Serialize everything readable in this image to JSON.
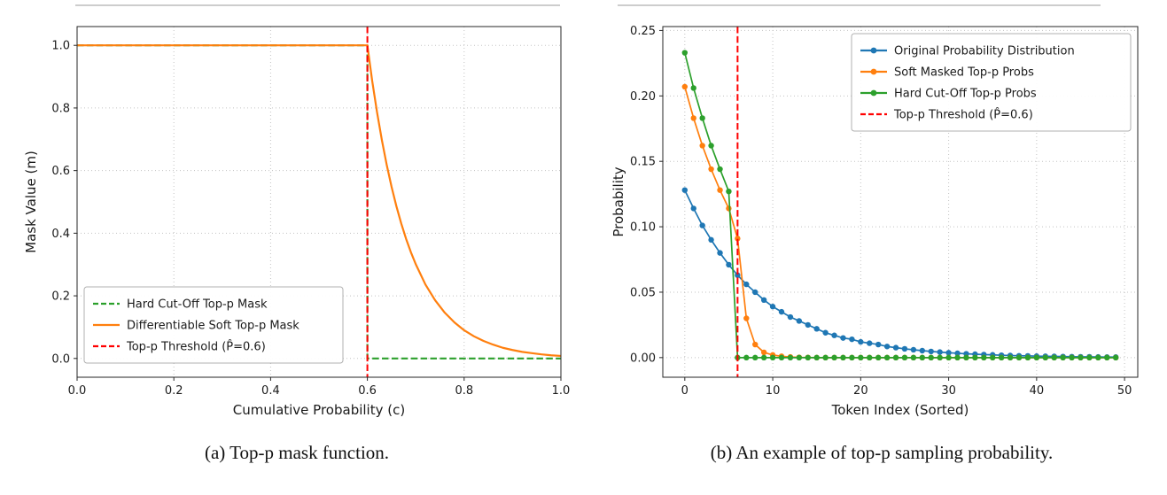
{
  "captions": {
    "a": "(a) Top-p mask function.",
    "b": "(b) An example of top-p sampling probability."
  },
  "chart_data": [
    {
      "id": "chart-a",
      "type": "line",
      "title": "",
      "xlabel": "Cumulative Probability (c)",
      "ylabel": "Mask Value (m)",
      "xlim": [
        0,
        1
      ],
      "ylim": [
        -0.06,
        1.06
      ],
      "xticks": [
        0,
        0.2,
        0.4,
        0.6,
        0.8,
        1.0
      ],
      "xtick_labels": [
        "0.0",
        "0.2",
        "0.4",
        "0.6",
        "0.8",
        "1.0"
      ],
      "yticks": [
        0,
        0.2,
        0.4,
        0.6,
        0.8,
        1.0
      ],
      "ytick_labels": [
        "0.0",
        "0.2",
        "0.4",
        "0.6",
        "0.8",
        "1.0"
      ],
      "grid": true,
      "legend_position": "lower left",
      "series": [
        {
          "name": "Hard Cut-Off Top-p Mask",
          "color": "#2ca02c",
          "style": "dashed",
          "marker": false,
          "points": [
            [
              0,
              1
            ],
            [
              0.6,
              1
            ],
            [
              0.6,
              0
            ],
            [
              1,
              0
            ]
          ]
        },
        {
          "name": "Differentiable Soft Top-p Mask",
          "color": "#ff7f0e",
          "style": "solid",
          "marker": false,
          "points": [
            [
              0,
              1
            ],
            [
              0.6,
              1
            ],
            [
              0.61,
              0.886
            ],
            [
              0.62,
              0.786
            ],
            [
              0.63,
              0.697
            ],
            [
              0.64,
              0.618
            ],
            [
              0.65,
              0.548
            ],
            [
              0.66,
              0.486
            ],
            [
              0.67,
              0.431
            ],
            [
              0.68,
              0.382
            ],
            [
              0.69,
              0.339
            ],
            [
              0.7,
              0.301
            ],
            [
              0.72,
              0.236
            ],
            [
              0.74,
              0.186
            ],
            [
              0.76,
              0.146
            ],
            [
              0.78,
              0.115
            ],
            [
              0.8,
              0.09
            ],
            [
              0.82,
              0.071
            ],
            [
              0.84,
              0.056
            ],
            [
              0.86,
              0.044
            ],
            [
              0.88,
              0.034
            ],
            [
              0.9,
              0.027
            ],
            [
              0.92,
              0.021
            ],
            [
              0.94,
              0.017
            ],
            [
              0.96,
              0.013
            ],
            [
              0.98,
              0.01
            ],
            [
              1,
              0.008
            ]
          ]
        }
      ],
      "vlines": [
        {
          "name": "Top-p Threshold (P̂=0.6)",
          "x": 0.6,
          "color": "#ff0000",
          "style": "dashed"
        }
      ]
    },
    {
      "id": "chart-b",
      "type": "line",
      "title": "",
      "xlabel": "Token Index (Sorted)",
      "ylabel": "Probability",
      "xlim": [
        -2.5,
        51.5
      ],
      "ylim": [
        -0.015,
        0.253
      ],
      "xticks": [
        0,
        10,
        20,
        30,
        40,
        50
      ],
      "xtick_labels": [
        "0",
        "10",
        "20",
        "30",
        "40",
        "50"
      ],
      "yticks": [
        0,
        0.05,
        0.1,
        0.15,
        0.2,
        0.25
      ],
      "ytick_labels": [
        "0.00",
        "0.05",
        "0.10",
        "0.15",
        "0.20",
        "0.25"
      ],
      "grid": true,
      "legend_position": "upper right",
      "x": [
        0,
        1,
        2,
        3,
        4,
        5,
        6,
        7,
        8,
        9,
        10,
        11,
        12,
        13,
        14,
        15,
        16,
        17,
        18,
        19,
        20,
        21,
        22,
        23,
        24,
        25,
        26,
        27,
        28,
        29,
        30,
        31,
        32,
        33,
        34,
        35,
        36,
        37,
        38,
        39,
        40,
        41,
        42,
        43,
        44,
        45,
        46,
        47,
        48,
        49
      ],
      "series": [
        {
          "name": "Original Probability Distribution",
          "color": "#1f77b4",
          "style": "solid",
          "marker": true,
          "values": [
            0.128,
            0.114,
            0.101,
            0.09,
            0.08,
            0.071,
            0.063,
            0.056,
            0.05,
            0.044,
            0.039,
            0.035,
            0.031,
            0.028,
            0.025,
            0.022,
            0.019,
            0.017,
            0.015,
            0.014,
            0.012,
            0.011,
            0.01,
            0.0085,
            0.0076,
            0.0067,
            0.006,
            0.0053,
            0.0047,
            0.0042,
            0.0037,
            0.0033,
            0.0029,
            0.0026,
            0.0023,
            0.0021,
            0.0018,
            0.0016,
            0.0014,
            0.0013,
            0.0011,
            0.001,
            0.0009,
            0.0008,
            0.0007,
            0.0006,
            0.0006,
            0.0005,
            0.0004,
            0.0004
          ]
        },
        {
          "name": "Soft Masked Top-p Probs",
          "color": "#ff7f0e",
          "style": "solid",
          "marker": true,
          "values": [
            0.207,
            0.183,
            0.162,
            0.144,
            0.128,
            0.114,
            0.091,
            0.03,
            0.01,
            0.004,
            0.002,
            0.001,
            0.0005,
            0.0002,
            0.0001,
            0,
            0,
            0,
            0,
            0,
            0,
            0,
            0,
            0,
            0,
            0,
            0,
            0,
            0,
            0,
            0,
            0,
            0,
            0,
            0,
            0,
            0,
            0,
            0,
            0,
            0,
            0,
            0,
            0,
            0,
            0,
            0,
            0,
            0,
            0
          ]
        },
        {
          "name": "Hard Cut-Off Top-p Probs",
          "color": "#2ca02c",
          "style": "solid",
          "marker": true,
          "values": [
            0.233,
            0.206,
            0.183,
            0.162,
            0.144,
            0.127,
            0,
            0,
            0,
            0,
            0,
            0,
            0,
            0,
            0,
            0,
            0,
            0,
            0,
            0,
            0,
            0,
            0,
            0,
            0,
            0,
            0,
            0,
            0,
            0,
            0,
            0,
            0,
            0,
            0,
            0,
            0,
            0,
            0,
            0,
            0,
            0,
            0,
            0,
            0,
            0,
            0,
            0,
            0,
            0
          ]
        }
      ],
      "vlines": [
        {
          "name": "Top-p Threshold (P̂=0.6)",
          "x": 6,
          "color": "#ff0000",
          "style": "dashed"
        }
      ]
    }
  ]
}
